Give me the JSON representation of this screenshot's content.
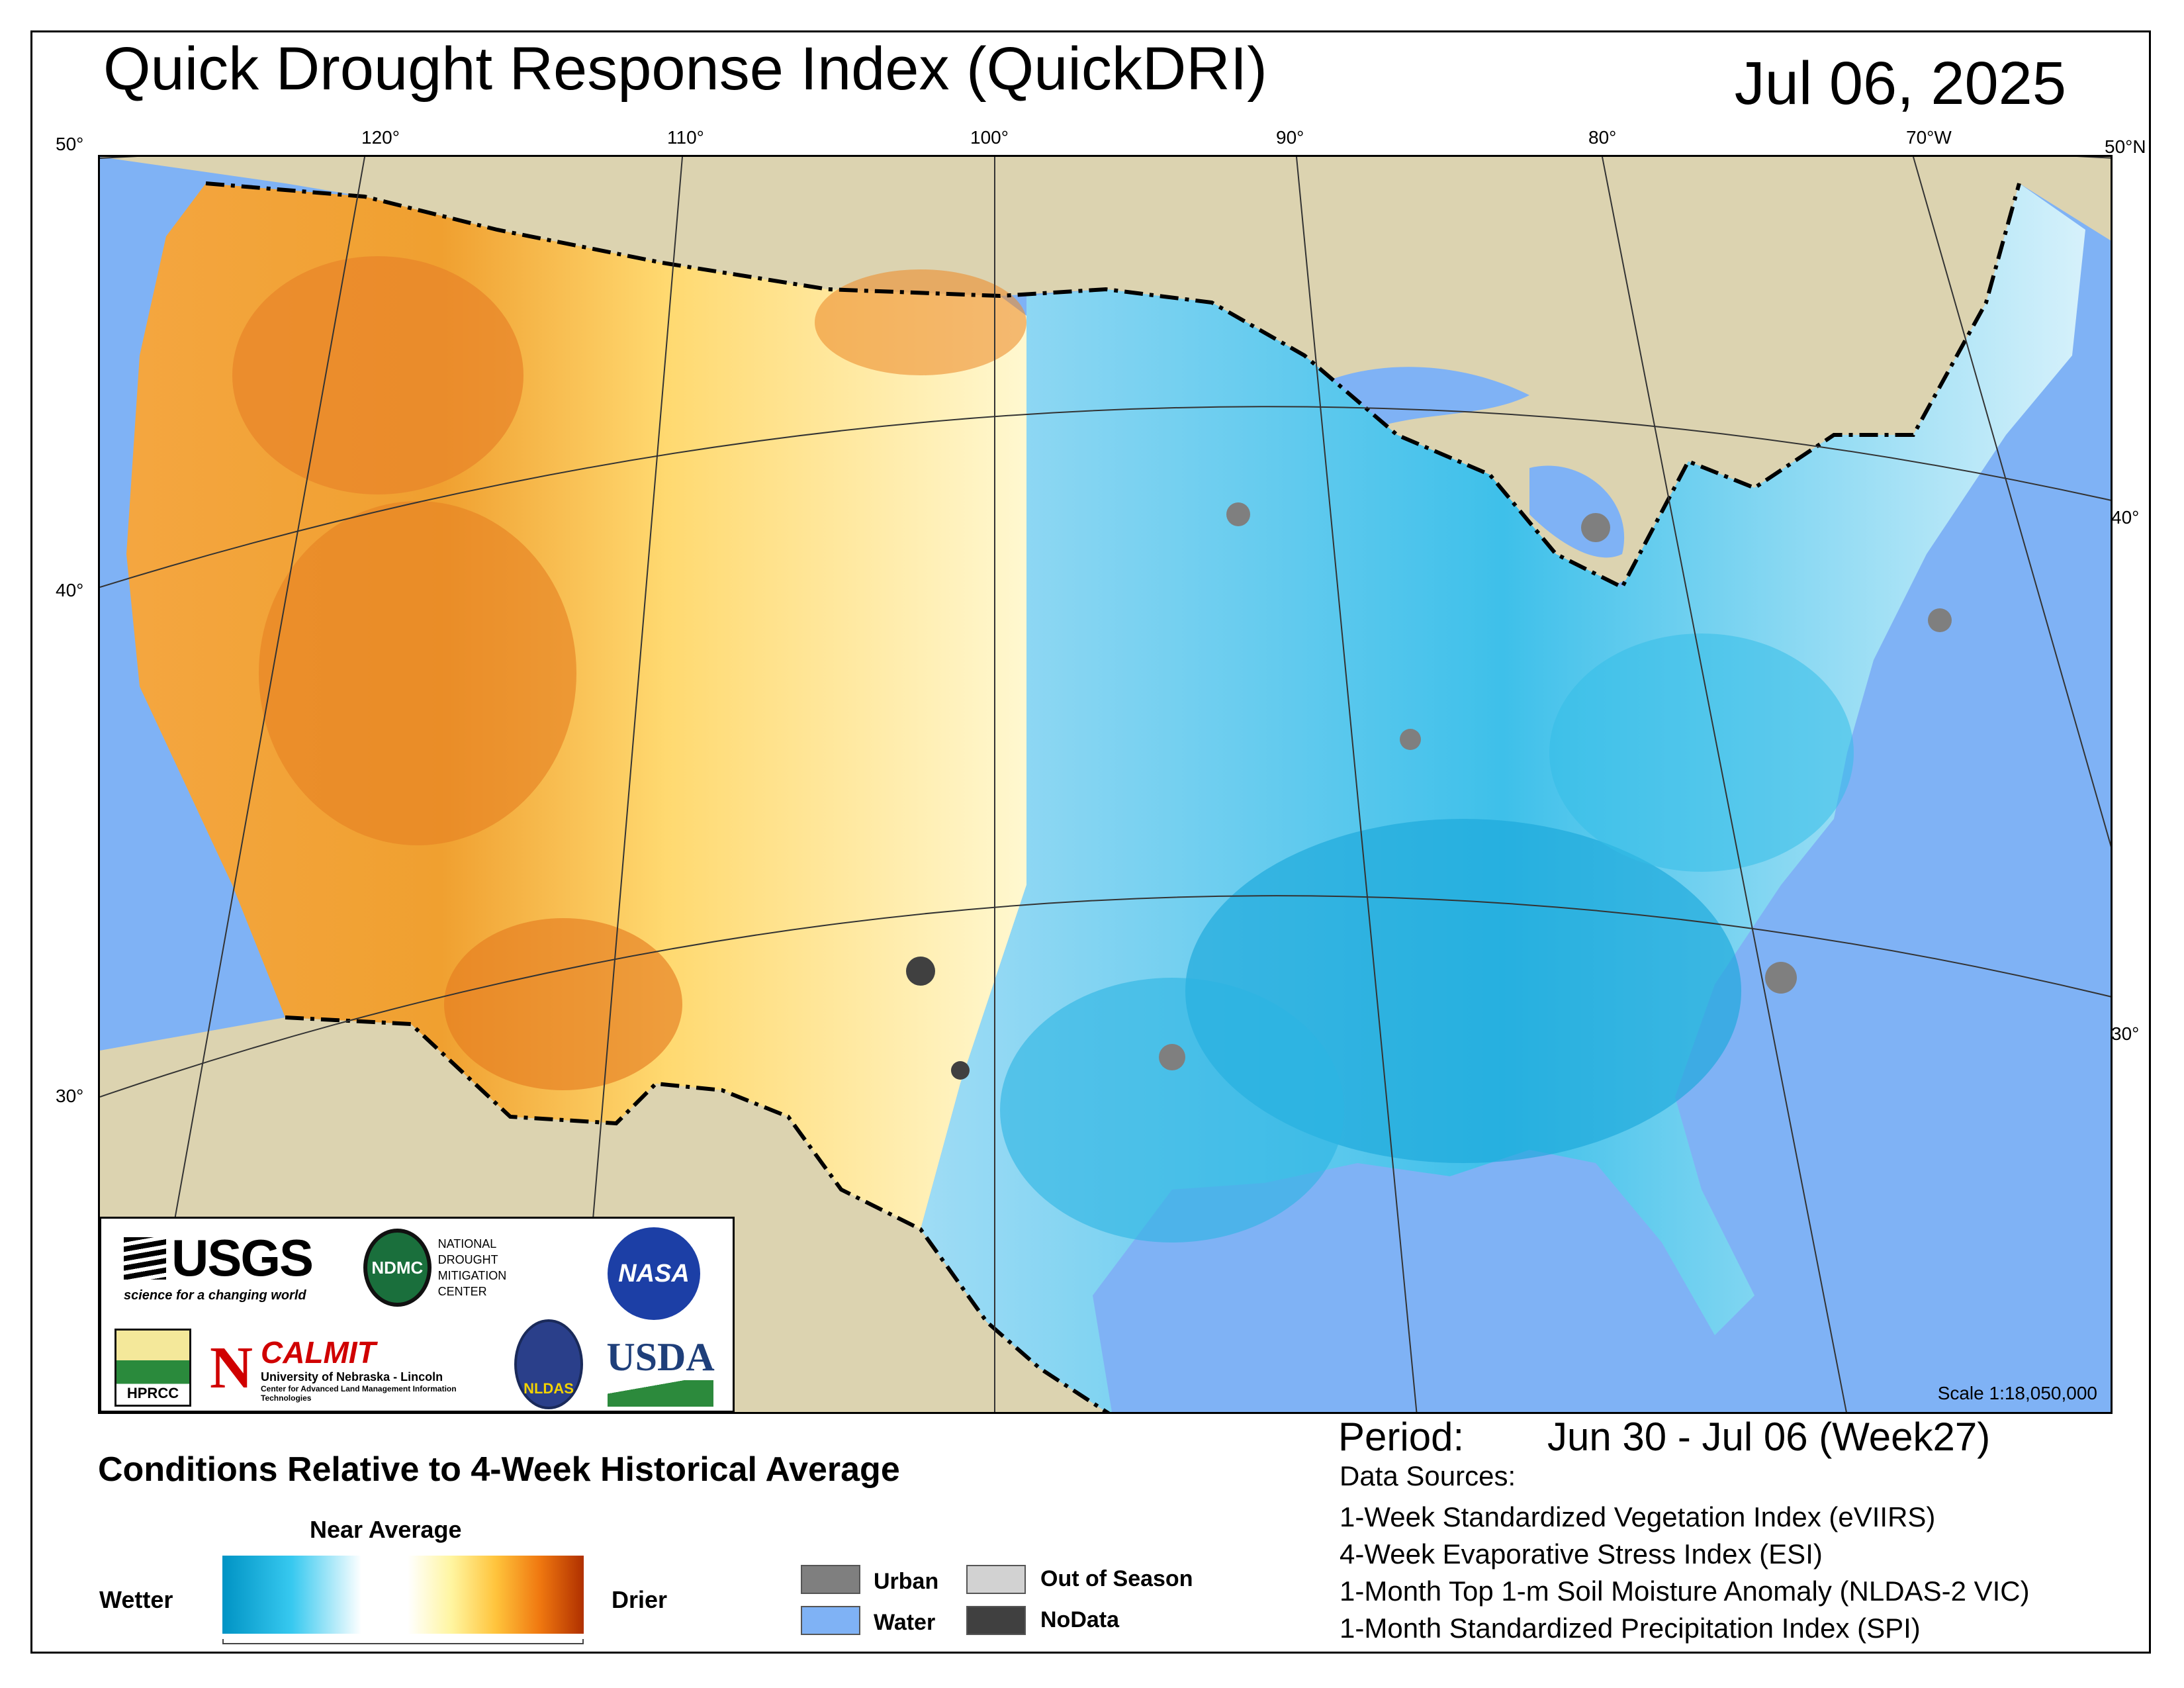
{
  "header": {
    "title": "Quick Drought Response Index (QuickDRI)",
    "date": "Jul 06, 2025"
  },
  "graticule": {
    "top": [
      "50°",
      "120°",
      "110°",
      "100°",
      "90°",
      "80°",
      "70°W",
      "50°N"
    ],
    "left": [
      "40°",
      "30°"
    ],
    "right": [
      "40°",
      "30°"
    ]
  },
  "map": {
    "scale": "Scale 1:18,050,000",
    "colors": {
      "water": "#7fb2f5",
      "land_outside": "#dcd3b0",
      "wetter": "#0093c4",
      "near_average": "#ffffff",
      "drier": "#b03000",
      "urban": "#7f7f7f",
      "out_of_season": "#d2d2d2",
      "nodata": "#404040"
    }
  },
  "logos": {
    "usgs": "USGS",
    "usgs_tagline": "science for a changing world",
    "ndmc": "NDMC",
    "ndmc_name_1": "NATIONAL DROUGHT",
    "ndmc_name_2": "MITIGATION CENTER",
    "nasa": "NASA",
    "hprcc": "HPRCC",
    "calmit": "CALMIT",
    "calmit_univ": "University of Nebraska - Lincoln",
    "calmit_center": "Center for Advanced Land Management Information Technologies",
    "nldas": "NLDAS",
    "usda": "USDA",
    "n_logo": "N"
  },
  "legend": {
    "title": "Conditions Relative to 4-Week Historical Average",
    "near_average": "Near Average",
    "wetter": "Wetter",
    "drier": "Drier",
    "categories": [
      "Urban",
      "Water",
      "Out of Season",
      "NoData"
    ]
  },
  "info": {
    "period_label": "Period:",
    "period_value": "Jun 30 - Jul 06 (Week27)",
    "sources_title": "Data Sources:",
    "sources": [
      "1-Week Standardized Vegetation Index (eVIIRS)",
      "4-Week Evaporative Stress Index (ESI)",
      "1-Month Top 1-m Soil Moisture Anomaly (NLDAS-2 VIC)",
      "1-Month Standardized Precipitation Index (SPI)"
    ]
  }
}
